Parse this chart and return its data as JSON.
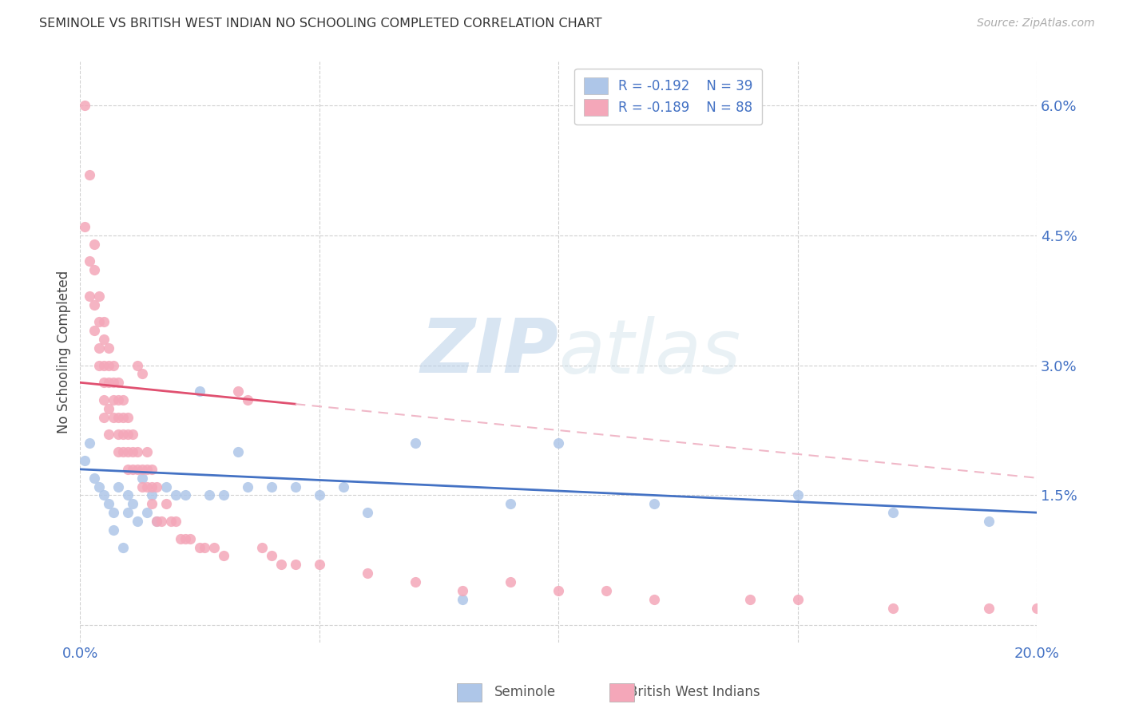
{
  "title": "SEMINOLE VS BRITISH WEST INDIAN NO SCHOOLING COMPLETED CORRELATION CHART",
  "source": "Source: ZipAtlas.com",
  "ylabel": "No Schooling Completed",
  "xlim": [
    0,
    0.2
  ],
  "ylim": [
    -0.002,
    0.065
  ],
  "yticks": [
    0.0,
    0.015,
    0.03,
    0.045,
    0.06
  ],
  "ytick_labels": [
    "",
    "1.5%",
    "3.0%",
    "4.5%",
    "6.0%"
  ],
  "xticks": [
    0.0,
    0.05,
    0.1,
    0.15,
    0.2
  ],
  "xtick_labels": [
    "0.0%",
    "",
    "",
    "",
    "20.0%"
  ],
  "watermark_zip": "ZIP",
  "watermark_atlas": "atlas",
  "legend_r1": "R = -0.192",
  "legend_n1": "N = 39",
  "legend_r2": "R = -0.189",
  "legend_n2": "N = 88",
  "seminole_color": "#aec6e8",
  "bwi_color": "#f4a7b9",
  "trend_blue": "#4472c4",
  "trend_pink_solid": "#e05070",
  "trend_pink_dash": "#f0b8c8",
  "text_blue": "#4472c4",
  "background": "#ffffff",
  "grid_color": "#d0d0d0",
  "seminole_x": [
    0.001,
    0.002,
    0.003,
    0.004,
    0.005,
    0.006,
    0.007,
    0.007,
    0.008,
    0.009,
    0.01,
    0.01,
    0.011,
    0.012,
    0.013,
    0.014,
    0.015,
    0.016,
    0.018,
    0.02,
    0.022,
    0.025,
    0.027,
    0.03,
    0.033,
    0.035,
    0.04,
    0.045,
    0.05,
    0.055,
    0.06,
    0.07,
    0.08,
    0.09,
    0.1,
    0.12,
    0.15,
    0.17,
    0.19
  ],
  "seminole_y": [
    0.019,
    0.021,
    0.017,
    0.016,
    0.015,
    0.014,
    0.013,
    0.011,
    0.016,
    0.009,
    0.015,
    0.013,
    0.014,
    0.012,
    0.017,
    0.013,
    0.015,
    0.012,
    0.016,
    0.015,
    0.015,
    0.027,
    0.015,
    0.015,
    0.02,
    0.016,
    0.016,
    0.016,
    0.015,
    0.016,
    0.013,
    0.021,
    0.003,
    0.014,
    0.021,
    0.014,
    0.015,
    0.013,
    0.012
  ],
  "bwi_x": [
    0.001,
    0.001,
    0.002,
    0.002,
    0.002,
    0.003,
    0.003,
    0.003,
    0.003,
    0.004,
    0.004,
    0.004,
    0.004,
    0.005,
    0.005,
    0.005,
    0.005,
    0.005,
    0.005,
    0.006,
    0.006,
    0.006,
    0.006,
    0.006,
    0.007,
    0.007,
    0.007,
    0.007,
    0.008,
    0.008,
    0.008,
    0.008,
    0.008,
    0.009,
    0.009,
    0.009,
    0.009,
    0.01,
    0.01,
    0.01,
    0.01,
    0.011,
    0.011,
    0.011,
    0.012,
    0.012,
    0.012,
    0.013,
    0.013,
    0.013,
    0.014,
    0.014,
    0.014,
    0.015,
    0.015,
    0.015,
    0.016,
    0.016,
    0.017,
    0.018,
    0.019,
    0.02,
    0.021,
    0.022,
    0.023,
    0.025,
    0.026,
    0.028,
    0.03,
    0.033,
    0.035,
    0.038,
    0.04,
    0.042,
    0.045,
    0.05,
    0.06,
    0.07,
    0.08,
    0.09,
    0.1,
    0.11,
    0.12,
    0.14,
    0.15,
    0.17,
    0.19,
    0.2
  ],
  "bwi_y": [
    0.06,
    0.046,
    0.052,
    0.042,
    0.038,
    0.044,
    0.041,
    0.037,
    0.034,
    0.038,
    0.035,
    0.032,
    0.03,
    0.035,
    0.033,
    0.03,
    0.028,
    0.026,
    0.024,
    0.032,
    0.03,
    0.028,
    0.025,
    0.022,
    0.03,
    0.028,
    0.026,
    0.024,
    0.028,
    0.026,
    0.024,
    0.022,
    0.02,
    0.026,
    0.024,
    0.022,
    0.02,
    0.024,
    0.022,
    0.02,
    0.018,
    0.022,
    0.02,
    0.018,
    0.03,
    0.02,
    0.018,
    0.029,
    0.018,
    0.016,
    0.02,
    0.018,
    0.016,
    0.018,
    0.016,
    0.014,
    0.016,
    0.012,
    0.012,
    0.014,
    0.012,
    0.012,
    0.01,
    0.01,
    0.01,
    0.009,
    0.009,
    0.009,
    0.008,
    0.027,
    0.026,
    0.009,
    0.008,
    0.007,
    0.007,
    0.007,
    0.006,
    0.005,
    0.004,
    0.005,
    0.004,
    0.004,
    0.003,
    0.003,
    0.003,
    0.002,
    0.002,
    0.002
  ],
  "pink_trend_intercept": 0.028,
  "pink_trend_slope": -0.055,
  "blue_trend_intercept": 0.018,
  "blue_trend_slope": -0.025
}
